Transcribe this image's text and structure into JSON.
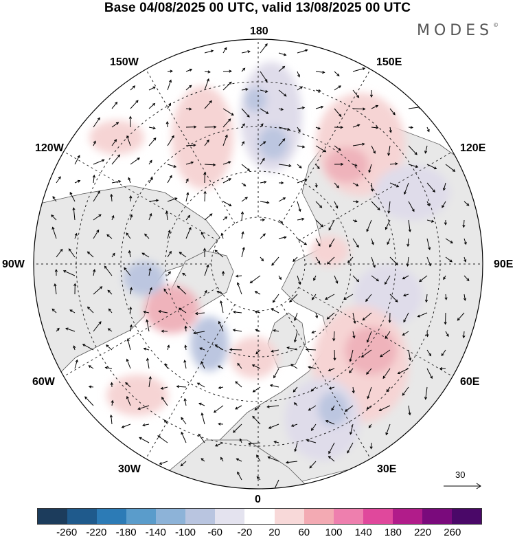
{
  "title": "Base 04/08/2025 00 UTC, valid 13/08/2025 00 UTC",
  "brand": "MODES",
  "brand_mark": "©",
  "longitude_labels": {
    "top": "180",
    "bottom": "0",
    "left": "90W",
    "right": "90E",
    "upper_left_1": "150W",
    "upper_left_2": "120W",
    "upper_right_1": "150E",
    "upper_right_2": "120E",
    "lower_left_1": "60W",
    "lower_left_2": "30W",
    "lower_right_1": "60E",
    "lower_right_2": "30E"
  },
  "reference_vector": {
    "label": "30"
  },
  "colorbar": {
    "ticks": [
      "-260",
      "-220",
      "-180",
      "-140",
      "-100",
      "-60",
      "-20",
      "20",
      "60",
      "100",
      "140",
      "180",
      "220",
      "260"
    ],
    "colors": [
      "#1c3c5c",
      "#1f5a8c",
      "#2c7bb6",
      "#5a9ccb",
      "#8db3d8",
      "#b9c5e0",
      "#e4e3ef",
      "#ffffff",
      "#f8d9d9",
      "#f3aab3",
      "#ee7fae",
      "#e0489c",
      "#b11c8a",
      "#7a0a7c",
      "#4a0868"
    ]
  },
  "anomaly_colors": {
    "land": "#e8e8e8",
    "pos1": "#f6d4d4",
    "pos2": "#efb3bb",
    "pos3": "#e88aa6",
    "neg1": "#dfdcea",
    "neg2": "#bcc6e0",
    "neg3": "#8eaad3"
  }
}
